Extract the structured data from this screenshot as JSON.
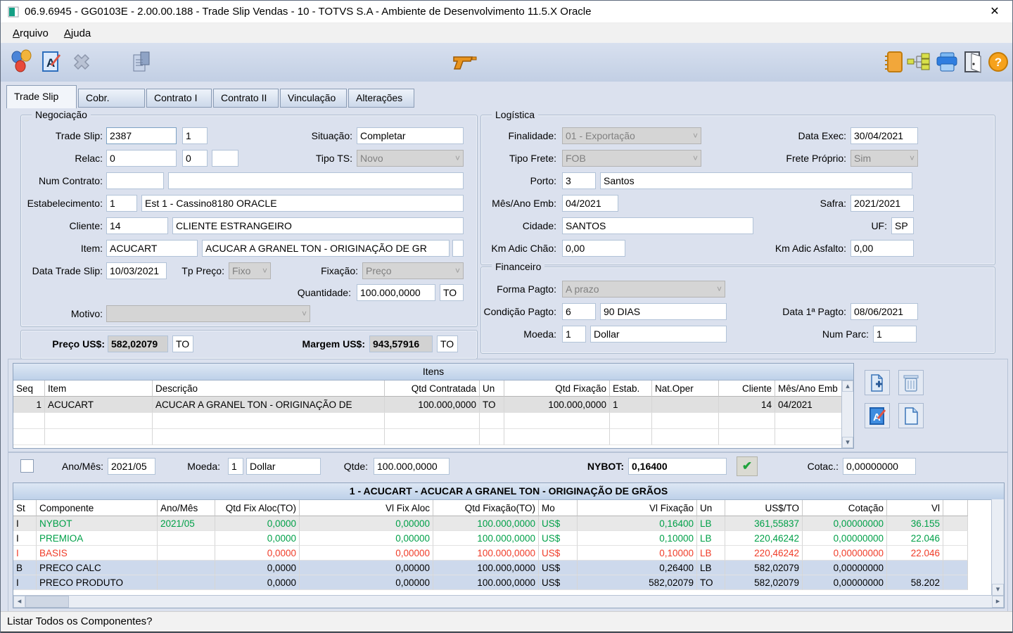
{
  "window": {
    "title": "06.9.6945 - GG0103E - 2.00.00.188 - Trade Slip Vendas - 10 - TOTVS S.A - Ambiente de Desenvolvimento 11.5.X Oracle"
  },
  "menu": [
    "Arquivo",
    "Ajuda"
  ],
  "tabs": [
    "Trade Slip",
    "Cobr.",
    "Contrato I",
    "Contrato II",
    "Vinculação",
    "Alterações"
  ],
  "neg": {
    "legend": "Negociação",
    "trade_slip_label": "Trade Slip:",
    "trade_slip": "2387",
    "trade_slip_seq": "1",
    "situacao_label": "Situação:",
    "situacao": "Completar",
    "relac_label": "Relac:",
    "relac_1": "0",
    "relac_2": "0",
    "relac_3": "",
    "tipo_ts_label": "Tipo TS:",
    "tipo_ts": "Novo",
    "num_contrato_label": "Num Contrato:",
    "num_contrato_1": "",
    "num_contrato_2": "",
    "estab_label": "Estabelecimento:",
    "estab_cod": "1",
    "estab_desc": "Est 1 - Cassino8180 ORACLE",
    "cliente_label": "Cliente:",
    "cliente_cod": "14",
    "cliente_desc": "CLIENTE ESTRANGEIRO",
    "item_label": "Item:",
    "item_cod": "ACUCART",
    "item_desc": "ACUCAR A GRANEL TON - ORIGINAÇÃO DE GR",
    "item_extra": "",
    "data_ts_label": "Data Trade Slip:",
    "data_ts": "10/03/2021",
    "tp_preco_label": "Tp Preço:",
    "tp_preco": "Fixo",
    "fixacao_label": "Fixação:",
    "fixacao": "Preço",
    "qtd_label": "Quantidade:",
    "qtd": "100.000,0000",
    "qtd_un": "TO",
    "motivo_label": "Motivo:",
    "motivo": ""
  },
  "precos": {
    "preco_label": "Preço US$:",
    "preco": "582,02079",
    "preco_un": "TO",
    "margem_label": "Margem US$:",
    "margem": "943,57916",
    "margem_un": "TO"
  },
  "logi": {
    "legend": "Logística",
    "finalidade_label": "Finalidade:",
    "finalidade": "01 - Exportação",
    "data_exec_label": "Data Exec:",
    "data_exec": "30/04/2021",
    "tipo_frete_label": "Tipo Frete:",
    "tipo_frete": "FOB",
    "frete_proprio_label": "Frete Próprio:",
    "frete_proprio": "Sim",
    "porto_label": "Porto:",
    "porto_cod": "3",
    "porto_desc": "Santos",
    "mes_ano_label": "Mês/Ano Emb:",
    "mes_ano": "04/2021",
    "safra_label": "Safra:",
    "safra": "2021/2021",
    "cidade_label": "Cidade:",
    "cidade": "SANTOS",
    "uf_label": "UF:",
    "uf": "SP",
    "km_chao_label": "Km Adic Chão:",
    "km_chao": "0,00",
    "km_asfalto_label": "Km Adic Asfalto:",
    "km_asfalto": "0,00"
  },
  "fin": {
    "legend": "Financeiro",
    "forma_label": "Forma Pagto:",
    "forma": "A prazo",
    "cond_label": "Condição Pagto:",
    "cond_cod": "6",
    "cond_desc": "90 DIAS",
    "data1_label": "Data 1ª Pagto:",
    "data1": "08/06/2021",
    "moeda_label": "Moeda:",
    "moeda_cod": "1",
    "moeda_desc": "Dollar",
    "num_parc_label": "Num Parc:",
    "num_parc": "1"
  },
  "itens": {
    "title": "Itens",
    "columns": [
      "Seq",
      "Item",
      "Descrição",
      "Qtd Contratada",
      "Un",
      "Qtd Fixação",
      "Estab.",
      "Nat.Oper",
      "Cliente",
      "Mês/Ano Emb"
    ],
    "rows": [
      [
        "1",
        "ACUCART",
        "ACUCAR A GRANEL TON - ORIGINAÇÃO DE",
        "100.000,0000",
        "TO",
        "100.000,0000",
        "1",
        "",
        "14",
        "04/2021"
      ]
    ]
  },
  "fixbar": {
    "ano_mes_label": "Ano/Mês:",
    "ano_mes": "2021/05",
    "moeda_label": "Moeda:",
    "moeda_cod": "1",
    "moeda_desc": "Dollar",
    "qtde_label": "Qtde:",
    "qtde": "100.000,0000",
    "nybot_label": "NYBOT:",
    "nybot": "0,16400",
    "cotac_label": "Cotac.:",
    "cotac": "0,00000000"
  },
  "comp": {
    "title": "1 - ACUCART - ACUCAR A GRANEL TON - ORIGINAÇÃO DE GRÃOS",
    "columns": [
      "St",
      "Componente",
      "Ano/Mês",
      "Qtd Fix Aloc(TO)",
      "Vl Fix Aloc",
      "Qtd Fixação(TO)",
      "Mo",
      "Vl Fixação",
      "Un",
      "US$/TO",
      "Cotação",
      "Vl",
      ""
    ],
    "rows": [
      {
        "cells": [
          "I",
          "NYBOT",
          "2021/05",
          "0,0000",
          "0,00000",
          "100.000,0000",
          "US$",
          "0,16400",
          "LB",
          "361,55837",
          "0,00000000",
          "36.155",
          ""
        ],
        "color": "green",
        "st_color": "black",
        "bg": "gray"
      },
      {
        "cells": [
          "I",
          "PREMIOA",
          "",
          "0,0000",
          "0,00000",
          "100.000,0000",
          "US$",
          "0,10000",
          "LB",
          "220,46242",
          "0,00000000",
          "22.046",
          ""
        ],
        "color": "green",
        "st_color": "black",
        "bg": "white"
      },
      {
        "cells": [
          "I",
          "BASIS",
          "",
          "0,0000",
          "0,00000",
          "100.000,0000",
          "US$",
          "0,10000",
          "LB",
          "220,46242",
          "0,00000000",
          "22.046",
          ""
        ],
        "color": "red",
        "st_color": "red",
        "bg": "white"
      },
      {
        "cells": [
          "B",
          "PRECO CALC",
          "",
          "0,0000",
          "0,00000",
          "100.000,0000",
          "US$",
          "0,26400",
          "LB",
          "582,02079",
          "0,00000000",
          "",
          ""
        ],
        "color": "black",
        "st_color": "black",
        "bg": "blue"
      },
      {
        "cells": [
          "I",
          "PRECO PRODUTO",
          "",
          "0,0000",
          "0,00000",
          "100.000,0000",
          "US$",
          "582,02079",
          "TO",
          "582,02079",
          "0,00000000",
          "58.202",
          ""
        ],
        "color": "black",
        "st_color": "black",
        "bg": "blue"
      }
    ]
  },
  "status": {
    "text": "Listar Todos os Componentes?"
  },
  "icons": {
    "close": "✕",
    "chevron_down": "˅",
    "check": "✔",
    "up": "▴",
    "down": "▾",
    "left": "◂",
    "right": "▸"
  },
  "colors": {
    "positive": "#00A048",
    "negative": "#f03c28",
    "accent_blue": "#2f7ee0",
    "calc_bg": "#d2d2d2"
  }
}
